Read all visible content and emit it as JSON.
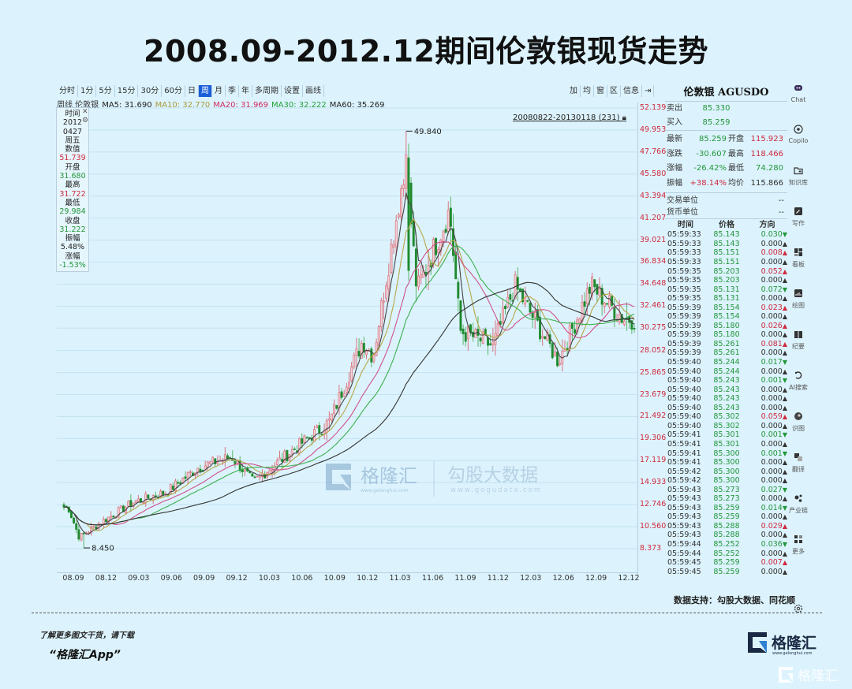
{
  "title": "2008.09-2012.12期间伦敦银现货走势",
  "toolbar": {
    "periods": [
      "分时",
      "1分",
      "5分",
      "15分",
      "30分",
      "60分",
      "日",
      "周",
      "月",
      "季",
      "年",
      "多周期",
      "设置",
      "画线"
    ],
    "active_period": "周",
    "right_buttons": [
      "加",
      "均",
      "窗",
      "区",
      "信息",
      "⇥"
    ]
  },
  "ma_legend": {
    "prefix": "周线 伦敦银",
    "items": [
      {
        "label": "MA5: 31.690",
        "color": "#222222"
      },
      {
        "label": "MA10: 32.770",
        "color": "#a89a3a"
      },
      {
        "label": "MA20: 31.969",
        "color": "#d0295f"
      },
      {
        "label": "MA30: 32.222",
        "color": "#23a13a"
      },
      {
        "label": "MA60: 35.269",
        "color": "#222222"
      }
    ]
  },
  "infobox": {
    "rows": [
      {
        "text": "时间",
        "cls": ""
      },
      {
        "text": "2012",
        "cls": ""
      },
      {
        "text": "0427",
        "cls": ""
      },
      {
        "text": "周五",
        "cls": ""
      },
      {
        "text": "数值",
        "cls": ""
      },
      {
        "text": "51.739",
        "cls": "red"
      },
      {
        "text": "开盘",
        "cls": ""
      },
      {
        "text": "31.680",
        "cls": "green"
      },
      {
        "text": "最高",
        "cls": ""
      },
      {
        "text": "31.722",
        "cls": "red"
      },
      {
        "text": "最低",
        "cls": ""
      },
      {
        "text": "29.984",
        "cls": "green"
      },
      {
        "text": "收盘",
        "cls": ""
      },
      {
        "text": "31.222",
        "cls": "green"
      },
      {
        "text": "振幅",
        "cls": ""
      },
      {
        "text": "5.48%",
        "cls": ""
      },
      {
        "text": "涨幅",
        "cls": ""
      },
      {
        "text": "-1.53%",
        "cls": "green"
      }
    ]
  },
  "range_label": "20080822-20130118 (231)",
  "annotations": {
    "high": "49.840",
    "low": "8.450"
  },
  "quote": {
    "name": "伦敦银 AGUSDO",
    "sell_label": "卖出",
    "sell": "85.330",
    "buy_label": "买入",
    "buy": "85.259",
    "stats": [
      {
        "l1": "最新",
        "v1": "85.259",
        "c1": "green",
        "l2": "开盘",
        "v2": "115.923",
        "c2": "red"
      },
      {
        "l1": "涨跌",
        "v1": "-30.607",
        "c1": "green",
        "l2": "最高",
        "v2": "118.466",
        "c2": "red"
      },
      {
        "l1": "涨幅",
        "v1": "-26.42%",
        "c1": "green",
        "l2": "最低",
        "v2": "74.280",
        "c2": "green"
      },
      {
        "l1": "振幅",
        "v1": "+38.14%",
        "c1": "red",
        "l2": "均价",
        "v2": "115.866",
        "c2": "dark"
      }
    ],
    "trade_unit_label": "交易单位",
    "trade_unit": "--",
    "currency_unit_label": "货币单位",
    "currency_unit": "--",
    "ticks_header": [
      "时间",
      "价格",
      "方向"
    ],
    "ticks": [
      [
        "05:59:33",
        "85.143",
        "0.030",
        "down"
      ],
      [
        "05:59:33",
        "85.143",
        "0.000",
        "flat"
      ],
      [
        "05:59:33",
        "85.151",
        "0.008",
        "up"
      ],
      [
        "05:59:33",
        "85.151",
        "0.000",
        "flat"
      ],
      [
        "05:59:35",
        "85.203",
        "0.052",
        "up"
      ],
      [
        "05:59:35",
        "85.203",
        "0.000",
        "flat"
      ],
      [
        "05:59:35",
        "85.131",
        "0.072",
        "down"
      ],
      [
        "05:59:35",
        "85.131",
        "0.000",
        "flat"
      ],
      [
        "05:59:39",
        "85.154",
        "0.023",
        "up"
      ],
      [
        "05:59:39",
        "85.154",
        "0.000",
        "flat"
      ],
      [
        "05:59:39",
        "85.180",
        "0.026",
        "up"
      ],
      [
        "05:59:39",
        "85.180",
        "0.000",
        "flat"
      ],
      [
        "05:59:39",
        "85.261",
        "0.081",
        "up"
      ],
      [
        "05:59:39",
        "85.261",
        "0.000",
        "flat"
      ],
      [
        "05:59:40",
        "85.244",
        "0.017",
        "down"
      ],
      [
        "05:59:40",
        "85.244",
        "0.000",
        "flat"
      ],
      [
        "05:59:40",
        "85.243",
        "0.001",
        "down"
      ],
      [
        "05:59:40",
        "85.243",
        "0.000",
        "flat"
      ],
      [
        "05:59:40",
        "85.243",
        "0.000",
        "flat"
      ],
      [
        "05:59:40",
        "85.243",
        "0.000",
        "flat"
      ],
      [
        "05:59:40",
        "85.302",
        "0.059",
        "up"
      ],
      [
        "05:59:40",
        "85.302",
        "0.000",
        "flat"
      ],
      [
        "05:59:41",
        "85.301",
        "0.001",
        "down"
      ],
      [
        "05:59:41",
        "85.301",
        "0.000",
        "flat"
      ],
      [
        "05:59:41",
        "85.300",
        "0.001",
        "down"
      ],
      [
        "05:59:41",
        "85.300",
        "0.000",
        "flat"
      ],
      [
        "05:59:42",
        "85.300",
        "0.000",
        "flat"
      ],
      [
        "05:59:42",
        "85.300",
        "0.000",
        "flat"
      ],
      [
        "05:59:43",
        "85.273",
        "0.027",
        "down"
      ],
      [
        "05:59:43",
        "85.273",
        "0.000",
        "flat"
      ],
      [
        "05:59:43",
        "85.259",
        "0.014",
        "down"
      ],
      [
        "05:59:43",
        "85.259",
        "0.000",
        "flat"
      ],
      [
        "05:59:43",
        "85.288",
        "0.029",
        "up"
      ],
      [
        "05:59:43",
        "85.288",
        "0.000",
        "flat"
      ],
      [
        "05:59:44",
        "85.252",
        "0.036",
        "down"
      ],
      [
        "05:59:44",
        "85.252",
        "0.000",
        "flat"
      ],
      [
        "05:59:45",
        "85.259",
        "0.007",
        "up"
      ],
      [
        "05:59:45",
        "85.259",
        "0.000",
        "flat"
      ]
    ]
  },
  "sidebar": [
    {
      "label": "Chat",
      "icon": "chat-icon"
    },
    {
      "label": "Copilo",
      "icon": "copilot-icon"
    },
    {
      "label": "知识库",
      "icon": "knowledge-base-icon"
    },
    {
      "label": "写作",
      "icon": "writing-icon"
    },
    {
      "label": "看板",
      "icon": "dashboard-icon"
    },
    {
      "label": "绘图",
      "icon": "chart-draw-icon"
    },
    {
      "label": "纪要",
      "icon": "notes-icon"
    },
    {
      "label": "AI搜索",
      "icon": "ai-search-icon"
    },
    {
      "label": "识图",
      "icon": "image-recognition-icon"
    },
    {
      "label": "翻译",
      "icon": "translate-icon"
    },
    {
      "label": "产业链",
      "icon": "industry-chain-icon"
    },
    {
      "label": "更多",
      "icon": "more-icon"
    },
    {
      "label": "",
      "icon": "settings-icon"
    }
  ],
  "watermark": {
    "brand1": "格隆汇",
    "url1": "www.gelonghui.com",
    "brand2": "勾股大数据",
    "url2": "www.gogudata.com"
  },
  "footer": {
    "source": "数据支持：勾股大数据、同花顺",
    "promo_line1": "了解更多图文干货，请下载",
    "promo_line2": "“格隆汇App”",
    "logo_text": "格隆汇",
    "logo_url": "www.gelonghui.com"
  },
  "colors": {
    "up": "#d0293d",
    "down": "#1f8a2e",
    "axis_text": "#d0293d",
    "background": "#dcf3fd",
    "active_tab": "#1a5fd8"
  },
  "chart_data": {
    "type": "candlestick",
    "title": "2008.09-2012.12期间伦敦银现货走势",
    "interval": "weekly",
    "range": "20080822-20130118",
    "bar_count": 231,
    "xlabel": "",
    "ylabel": "",
    "x_ticks": [
      "08.09",
      "08.12",
      "09.03",
      "09.06",
      "09.09",
      "09.12",
      "10.03",
      "10.06",
      "10.09",
      "10.12",
      "11.03",
      "11.06",
      "11.09",
      "11.12",
      "12.03",
      "12.06",
      "12.09",
      "12.12"
    ],
    "y_ticks": [
      52.139,
      49.953,
      47.766,
      45.58,
      43.394,
      41.207,
      39.021,
      36.834,
      34.648,
      32.461,
      30.275,
      28.052,
      25.865,
      23.679,
      21.492,
      19.306,
      17.119,
      14.933,
      12.746,
      10.56,
      8.373
    ],
    "ylim": [
      8.373,
      52.139
    ],
    "grid": true,
    "annotations": [
      {
        "label": "49.840",
        "type": "period high",
        "x": "2011-04"
      },
      {
        "label": "8.450",
        "type": "period low",
        "x": "2008-10"
      }
    ],
    "moving_averages": [
      {
        "name": "MA5",
        "last": 31.69
      },
      {
        "name": "MA10",
        "last": 32.77
      },
      {
        "name": "MA20",
        "last": 31.969
      },
      {
        "name": "MA30",
        "last": 32.222
      },
      {
        "name": "MA60",
        "last": 35.269
      }
    ],
    "key_points": [
      {
        "x": "08.09",
        "close": 12.5
      },
      {
        "x": "08.10",
        "close": 9.5
      },
      {
        "x": "08.12",
        "close": 11.0
      },
      {
        "x": "09.03",
        "close": 13.0
      },
      {
        "x": "09.06",
        "close": 14.0
      },
      {
        "x": "09.09",
        "close": 16.5
      },
      {
        "x": "09.12",
        "close": 17.5
      },
      {
        "x": "10.02",
        "close": 15.0
      },
      {
        "x": "10.06",
        "close": 18.5
      },
      {
        "x": "10.09",
        "close": 21.0
      },
      {
        "x": "10.12",
        "close": 29.0
      },
      {
        "x": "11.01",
        "close": 27.5
      },
      {
        "x": "11.04",
        "close": 47.0
      },
      {
        "x": "11.05",
        "close": 34.0
      },
      {
        "x": "11.08",
        "close": 42.0
      },
      {
        "x": "11.09",
        "close": 30.0
      },
      {
        "x": "11.12",
        "close": 28.5
      },
      {
        "x": "12.02",
        "close": 34.5
      },
      {
        "x": "12.06",
        "close": 27.0
      },
      {
        "x": "12.09",
        "close": 34.5
      },
      {
        "x": "12.12",
        "close": 31.2
      }
    ]
  }
}
